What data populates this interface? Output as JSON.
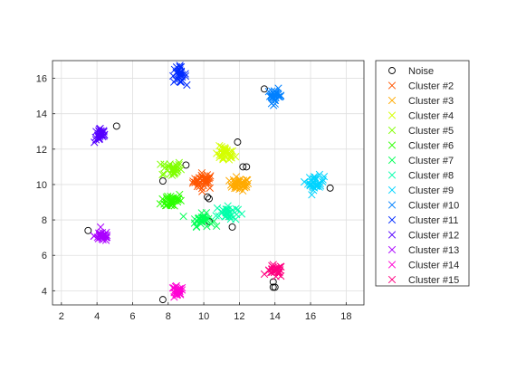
{
  "chart_data": {
    "type": "scatter",
    "title": "",
    "xlabel": "",
    "ylabel": "",
    "xlim": [
      1.5,
      19.0
    ],
    "ylim": [
      3.2,
      17.0
    ],
    "xticks": [
      2,
      4,
      6,
      8,
      10,
      12,
      14,
      16,
      18
    ],
    "yticks": [
      4,
      6,
      8,
      10,
      12,
      14,
      16
    ],
    "grid": true,
    "legend_position": "outside-right",
    "series": [
      {
        "name": "Noise",
        "marker": "circle",
        "color": "#000000",
        "points": [
          [
            3.5,
            7.4
          ],
          [
            5.1,
            13.3
          ],
          [
            7.7,
            10.2
          ],
          [
            7.7,
            3.5
          ],
          [
            9.0,
            11.1
          ],
          [
            10.2,
            9.3
          ],
          [
            10.3,
            9.2
          ],
          [
            10.3,
            7.9
          ],
          [
            11.6,
            7.6
          ],
          [
            11.9,
            12.4
          ],
          [
            12.2,
            11.0
          ],
          [
            12.4,
            11.0
          ],
          [
            13.4,
            15.4
          ],
          [
            13.9,
            4.5
          ],
          [
            13.9,
            4.2
          ],
          [
            14.0,
            4.2
          ],
          [
            17.1,
            9.8
          ]
        ]
      },
      {
        "name": "Cluster #2",
        "marker": "x",
        "color": "#ff5500",
        "center": [
          10.0,
          10.2
        ],
        "spread": [
          0.6,
          0.45
        ],
        "count": 38
      },
      {
        "name": "Cluster #3",
        "marker": "x",
        "color": "#ffaa00",
        "center": [
          12.0,
          10.0
        ],
        "spread": [
          0.55,
          0.35
        ],
        "count": 35
      },
      {
        "name": "Cluster #4",
        "marker": "x",
        "color": "#d4ff00",
        "center": [
          11.2,
          11.7
        ],
        "spread": [
          0.55,
          0.45
        ],
        "count": 32
      },
      {
        "name": "Cluster #5",
        "marker": "x",
        "color": "#80ff00",
        "center": [
          8.2,
          10.9
        ],
        "spread": [
          0.55,
          0.45
        ],
        "count": 32
      },
      {
        "name": "Cluster #6",
        "marker": "x",
        "color": "#2bff00",
        "center": [
          8.2,
          9.1
        ],
        "spread": [
          0.6,
          0.45
        ],
        "count": 35
      },
      {
        "name": "Cluster #7",
        "marker": "x",
        "color": "#00ff55",
        "center": [
          9.9,
          8.0
        ],
        "spread": [
          0.6,
          0.35
        ],
        "count": 32
      },
      {
        "name": "Cluster #8",
        "marker": "x",
        "color": "#00ffaa",
        "center": [
          11.3,
          8.4
        ],
        "spread": [
          0.6,
          0.45
        ],
        "count": 30
      },
      {
        "name": "Cluster #9",
        "marker": "x",
        "color": "#00d4ff",
        "center": [
          16.3,
          10.1
        ],
        "spread": [
          0.45,
          0.4
        ],
        "count": 30
      },
      {
        "name": "Cluster #10",
        "marker": "x",
        "color": "#0080ff",
        "center": [
          14.0,
          15.0
        ],
        "spread": [
          0.4,
          0.4
        ],
        "count": 30
      },
      {
        "name": "Cluster #11",
        "marker": "x",
        "color": "#002bff",
        "center": [
          8.6,
          16.2
        ],
        "spread": [
          0.4,
          0.45
        ],
        "count": 30
      },
      {
        "name": "Cluster #12",
        "marker": "x",
        "color": "#5500ff",
        "center": [
          4.2,
          12.8
        ],
        "spread": [
          0.35,
          0.45
        ],
        "count": 28
      },
      {
        "name": "Cluster #13",
        "marker": "x",
        "color": "#aa00ff",
        "center": [
          4.3,
          7.1
        ],
        "spread": [
          0.45,
          0.3
        ],
        "count": 28
      },
      {
        "name": "Cluster #14",
        "marker": "x",
        "color": "#ff00d4",
        "center": [
          8.5,
          3.9
        ],
        "spread": [
          0.35,
          0.35
        ],
        "count": 26
      },
      {
        "name": "Cluster #15",
        "marker": "x",
        "color": "#ff0080",
        "center": [
          14.0,
          5.1
        ],
        "spread": [
          0.45,
          0.35
        ],
        "count": 28
      }
    ]
  }
}
